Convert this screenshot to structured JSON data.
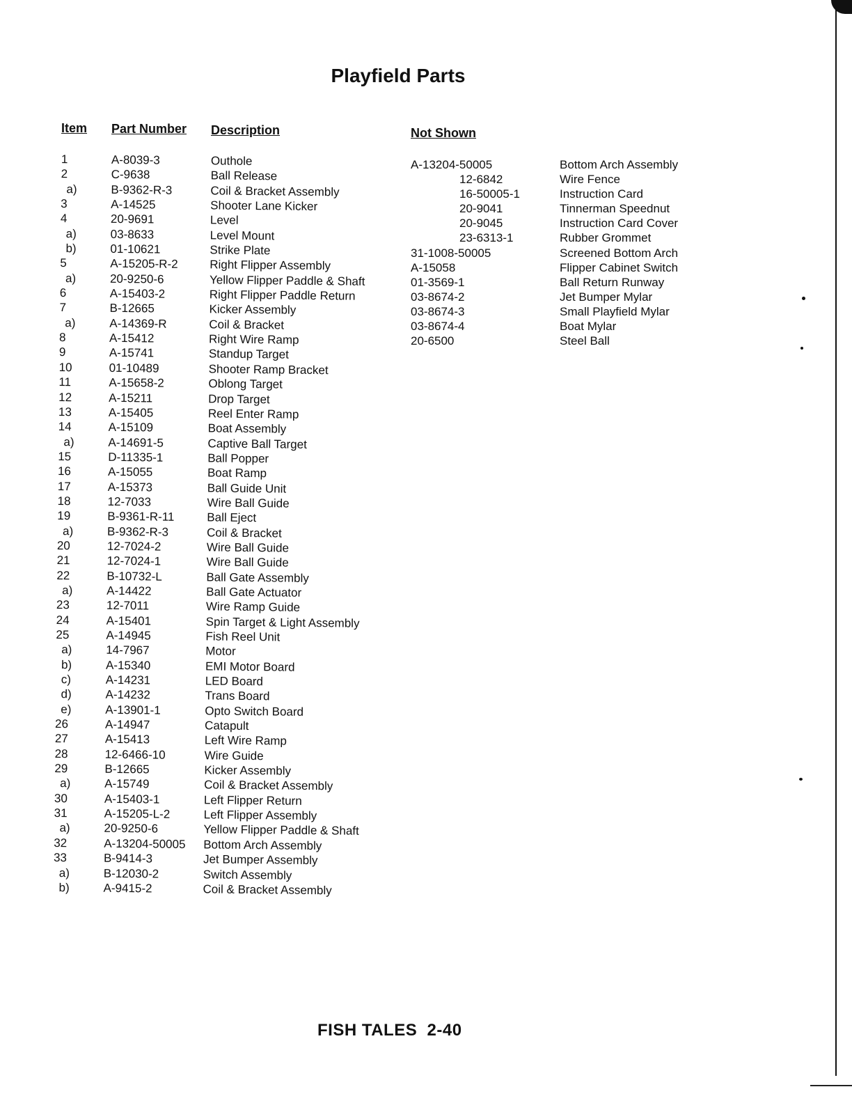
{
  "title": "Playfield Parts",
  "headers": {
    "item": "Item",
    "part_number": "Part Number",
    "description": "Description",
    "not_shown": "Not Shown"
  },
  "parts": [
    {
      "item": "1",
      "part": "A-8039-3",
      "desc": "Outhole"
    },
    {
      "item": "2",
      "part": "C-9638",
      "desc": "Ball Release"
    },
    {
      "item": "a)",
      "part": "B-9362-R-3",
      "desc": "Coil & Bracket Assembly"
    },
    {
      "item": "3",
      "part": "A-14525",
      "desc": "Shooter Lane Kicker"
    },
    {
      "item": "4",
      "part": "20-9691",
      "desc": "Level"
    },
    {
      "item": "a)",
      "part": "03-8633",
      "desc": "Level Mount"
    },
    {
      "item": "b)",
      "part": "01-10621",
      "desc": "Strike Plate"
    },
    {
      "item": "5",
      "part": "A-15205-R-2",
      "desc": "Right Flipper Assembly"
    },
    {
      "item": "a)",
      "part": "20-9250-6",
      "desc": "Yellow Flipper Paddle & Shaft"
    },
    {
      "item": "6",
      "part": "A-15403-2",
      "desc": "Right Flipper Paddle Return"
    },
    {
      "item": "7",
      "part": "B-12665",
      "desc": "Kicker Assembly"
    },
    {
      "item": "a)",
      "part": "A-14369-R",
      "desc": "Coil & Bracket"
    },
    {
      "item": "8",
      "part": "A-15412",
      "desc": "Right Wire Ramp"
    },
    {
      "item": "9",
      "part": "A-15741",
      "desc": "Standup Target"
    },
    {
      "item": "10",
      "part": "01-10489",
      "desc": "Shooter Ramp Bracket"
    },
    {
      "item": "11",
      "part": "A-15658-2",
      "desc": "Oblong Target"
    },
    {
      "item": "12",
      "part": "A-15211",
      "desc": "Drop Target"
    },
    {
      "item": "13",
      "part": "A-15405",
      "desc": "Reel Enter Ramp"
    },
    {
      "item": "14",
      "part": "A-15109",
      "desc": "Boat Assembly"
    },
    {
      "item": "a)",
      "part": "A-14691-5",
      "desc": "Captive Ball Target"
    },
    {
      "item": "15",
      "part": "D-11335-1",
      "desc": "Ball Popper"
    },
    {
      "item": "16",
      "part": "A-15055",
      "desc": "Boat Ramp"
    },
    {
      "item": "17",
      "part": "A-15373",
      "desc": "Ball Guide Unit"
    },
    {
      "item": "18",
      "part": "12-7033",
      "desc": "Wire Ball Guide"
    },
    {
      "item": "19",
      "part": "B-9361-R-11",
      "desc": "Ball Eject"
    },
    {
      "item": "a)",
      "part": "B-9362-R-3",
      "desc": "Coil & Bracket"
    },
    {
      "item": "20",
      "part": "12-7024-2",
      "desc": "Wire Ball Guide"
    },
    {
      "item": "21",
      "part": "12-7024-1",
      "desc": "Wire Ball Guide"
    },
    {
      "item": "22",
      "part": "B-10732-L",
      "desc": "Ball Gate Assembly"
    },
    {
      "item": "a)",
      "part": "A-14422",
      "desc": "Ball Gate Actuator"
    },
    {
      "item": "23",
      "part": "12-7011",
      "desc": "Wire Ramp Guide"
    },
    {
      "item": "24",
      "part": "A-15401",
      "desc": "Spin Target & Light Assembly"
    },
    {
      "item": "25",
      "part": "A-14945",
      "desc": "Fish Reel Unit"
    },
    {
      "item": "a)",
      "part": "14-7967",
      "desc": "Motor"
    },
    {
      "item": "b)",
      "part": "A-15340",
      "desc": "EMI Motor Board"
    },
    {
      "item": "c)",
      "part": "A-14231",
      "desc": "LED Board"
    },
    {
      "item": "d)",
      "part": "A-14232",
      "desc": "Trans Board"
    },
    {
      "item": "e)",
      "part": "A-13901-1",
      "desc": "Opto Switch Board"
    },
    {
      "item": "26",
      "part": "A-14947",
      "desc": "Catapult"
    },
    {
      "item": "27",
      "part": "A-15413",
      "desc": "Left Wire Ramp"
    },
    {
      "item": "28",
      "part": "12-6466-10",
      "desc": "Wire Guide"
    },
    {
      "item": "29",
      "part": "B-12665",
      "desc": "Kicker Assembly"
    },
    {
      "item": "a)",
      "part": "A-15749",
      "desc": "Coil & Bracket Assembly"
    },
    {
      "item": "30",
      "part": "A-15403-1",
      "desc": "Left Flipper Return"
    },
    {
      "item": "31",
      "part": "A-15205-L-2",
      "desc": "Left Flipper Assembly"
    },
    {
      "item": "a)",
      "part": "20-9250-6",
      "desc": "Yellow Flipper Paddle & Shaft"
    },
    {
      "item": "32",
      "part": "A-13204-50005",
      "desc": "Bottom Arch Assembly"
    },
    {
      "item": "33",
      "part": "B-9414-3",
      "desc": "Jet Bumper Assembly"
    },
    {
      "item": "a)",
      "part": "B-12030-2",
      "desc": "Switch Assembly"
    },
    {
      "item": "b)",
      "part": "A-9415-2",
      "desc": "Coil & Bracket Assembly"
    }
  ],
  "not_shown": [
    {
      "part": "A-13204-50005",
      "desc": "Bottom Arch Assembly",
      "indent": false
    },
    {
      "part": "12-6842",
      "desc": "Wire Fence",
      "indent": true
    },
    {
      "part": "16-50005-1",
      "desc": "Instruction Card",
      "indent": true
    },
    {
      "part": "20-9041",
      "desc": "Tinnerman Speednut",
      "indent": true
    },
    {
      "part": "20-9045",
      "desc": "Instruction Card Cover",
      "indent": true
    },
    {
      "part": "23-6313-1",
      "desc": "Rubber Grommet",
      "indent": true
    },
    {
      "part": "31-1008-50005",
      "desc": "Screened Bottom Arch",
      "indent": false
    },
    {
      "part": "A-15058",
      "desc": "Flipper Cabinet Switch",
      "indent": false
    },
    {
      "part": "01-3569-1",
      "desc": "Ball Return Runway",
      "indent": false
    },
    {
      "part": "03-8674-2",
      "desc": "Jet Bumper Mylar",
      "indent": false
    },
    {
      "part": "03-8674-3",
      "desc": "Small Playfield Mylar",
      "indent": false
    },
    {
      "part": "03-8674-4",
      "desc": "Boat Mylar",
      "indent": false
    },
    {
      "part": "20-6500",
      "desc": "Steel Ball",
      "indent": false
    }
  ],
  "footer": "FISH TALES  2-40"
}
